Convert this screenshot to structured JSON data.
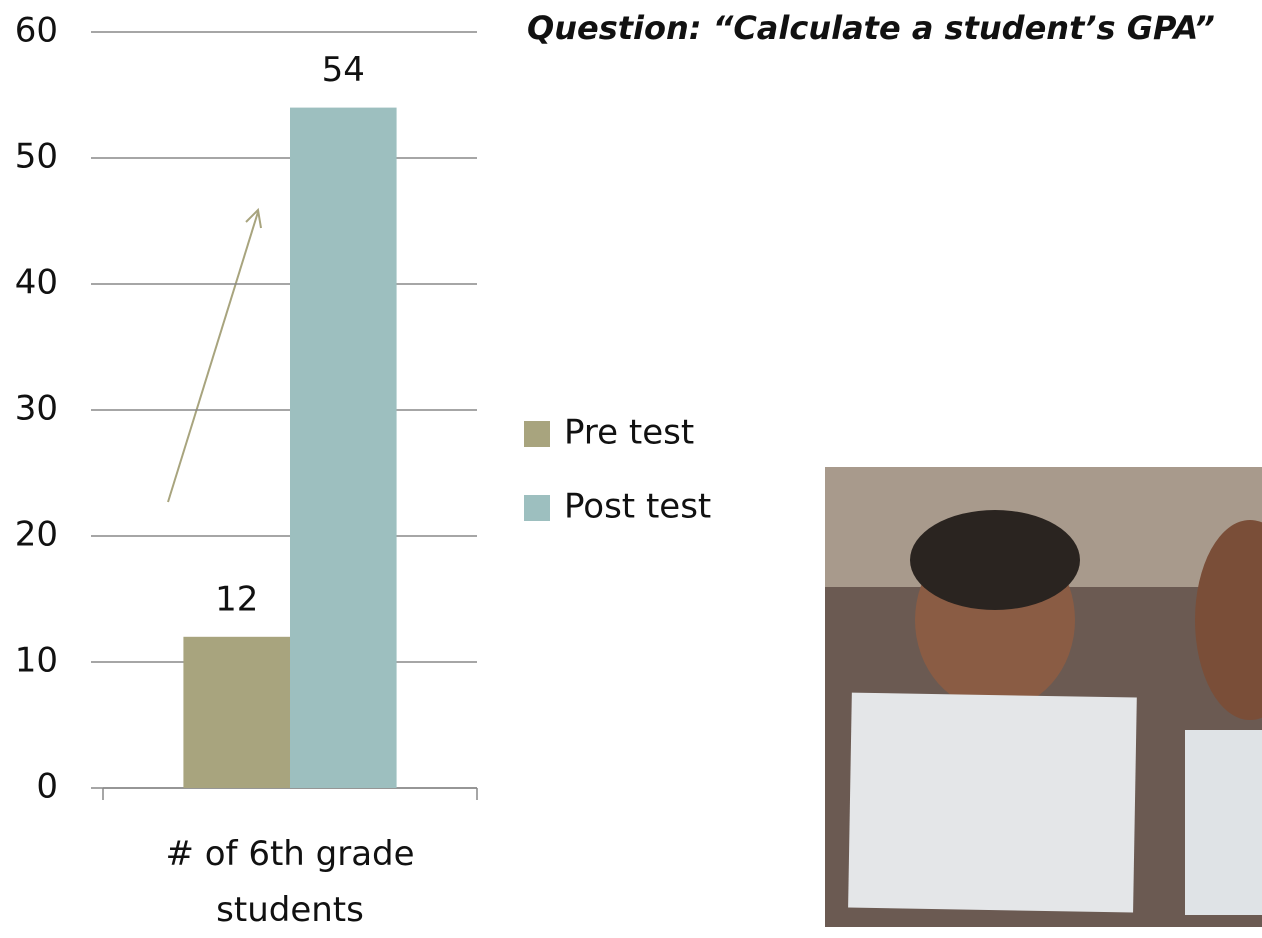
{
  "chart_data": {
    "type": "bar",
    "title": "Question: “Calculate a student’s GPA”",
    "categories": [
      "# of 6th grade students"
    ],
    "series": [
      {
        "name": "Pre test",
        "color": "#a8a47e",
        "values": [
          12
        ]
      },
      {
        "name": "Post test",
        "color": "#9dbfbf",
        "values": [
          54
        ]
      }
    ],
    "ylim": [
      0,
      60
    ],
    "yticks": [
      0,
      10,
      20,
      30,
      40,
      50,
      60
    ],
    "grid": true,
    "legend": "right"
  }
}
